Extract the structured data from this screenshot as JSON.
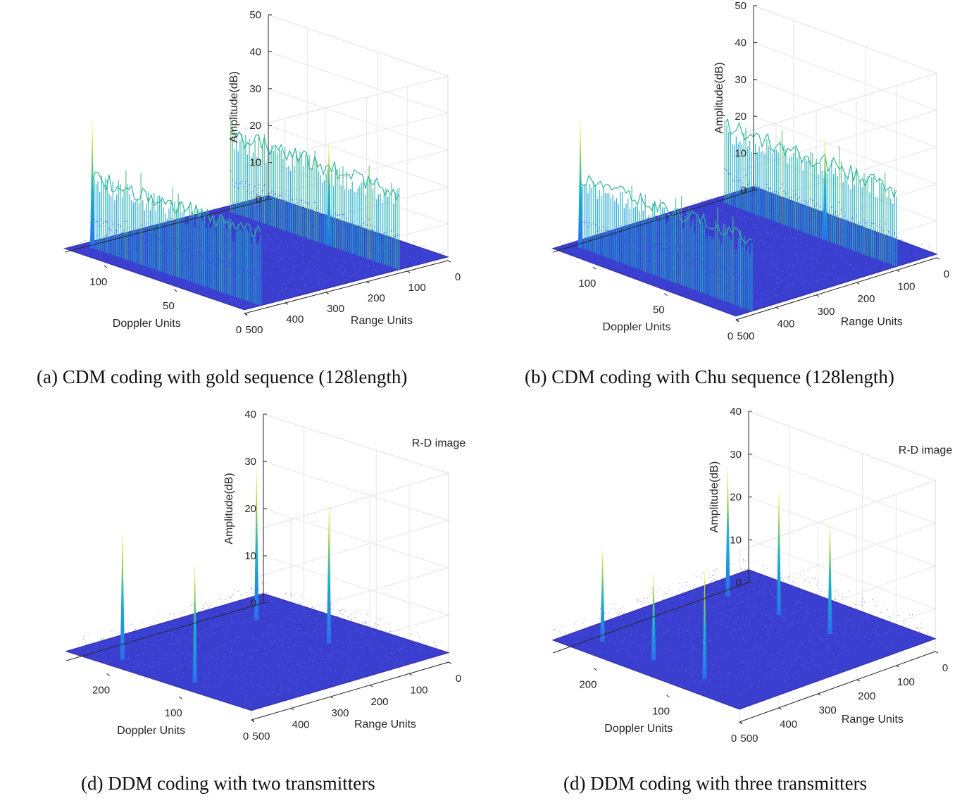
{
  "chart_data": [
    {
      "type": "surface3d",
      "title": "",
      "caption": "(a) CDM coding with gold sequence (128length)",
      "xlabel": "Range Units",
      "ylabel": "Doppler Units",
      "zlabel": "Amplitude(dB)",
      "xlim": [
        0,
        500
      ],
      "ylim": [
        0,
        128
      ],
      "zlim": [
        0,
        50
      ],
      "xticks": [
        0,
        100,
        200,
        300,
        400,
        500
      ],
      "yticks": [
        0,
        50,
        100
      ],
      "zticks": [
        0,
        10,
        20,
        30,
        40,
        50
      ],
      "grid": true,
      "noise_floor_db": 1,
      "ridges": [
        {
          "range": 460,
          "doppler_from": 0,
          "doppler_to": 120,
          "level_db": 22
        },
        {
          "range": 120,
          "doppler_from": 0,
          "doppler_to": 120,
          "level_db": 24
        }
      ],
      "peaks": [
        {
          "range": 460,
          "doppler": 120,
          "amplitude_db": 36
        },
        {
          "range": 120,
          "doppler": 50,
          "amplitude_db": 30
        }
      ]
    },
    {
      "type": "surface3d",
      "title": "",
      "caption": "(b) CDM coding with Chu sequence (128length)",
      "xlabel": "Range Units",
      "ylabel": "Doppler Units",
      "zlabel": "Amplitude(dB)",
      "xlim": [
        0,
        500
      ],
      "ylim": [
        0,
        128
      ],
      "zlim": [
        0,
        50
      ],
      "xticks": [
        0,
        100,
        200,
        300,
        400,
        500
      ],
      "yticks": [
        0,
        50,
        100
      ],
      "zticks": [
        0,
        10,
        20,
        30,
        40,
        50
      ],
      "grid": true,
      "noise_floor_db": 1,
      "ridges": [
        {
          "range": 460,
          "doppler_from": 0,
          "doppler_to": 120,
          "level_db": 22
        },
        {
          "range": 100,
          "doppler_from": 0,
          "doppler_to": 120,
          "level_db": 24
        }
      ],
      "peaks": [
        {
          "range": 460,
          "doppler": 120,
          "amplitude_db": 36
        },
        {
          "range": 100,
          "doppler": 50,
          "amplitude_db": 30
        }
      ]
    },
    {
      "type": "surface3d",
      "title": "R-D image",
      "caption": "(d) DDM coding with two transmitters",
      "xlabel": "Range Units",
      "ylabel": "Doppler Units",
      "zlabel": "Amplitude(dB)",
      "xlim": [
        0,
        500
      ],
      "ylim": [
        0,
        256
      ],
      "zlim": [
        0,
        40
      ],
      "xticks": [
        0,
        100,
        200,
        300,
        400,
        500
      ],
      "yticks": [
        0,
        100,
        200
      ],
      "zticks": [
        0,
        10,
        20,
        30,
        40
      ],
      "grid": true,
      "noise_floor_db": 2,
      "peaks": [
        {
          "range": 460,
          "doppler": 200,
          "amplitude_db": 30
        },
        {
          "range": 460,
          "doppler": 100,
          "amplitude_db": 28
        },
        {
          "range": 120,
          "doppler": 200,
          "amplitude_db": 35
        },
        {
          "range": 120,
          "doppler": 100,
          "amplitude_db": 32
        }
      ]
    },
    {
      "type": "surface3d",
      "title": "R-D image",
      "caption": "(d) DDM coding with three transmitters",
      "xlabel": "Range Units",
      "ylabel": "Doppler Units",
      "zlabel": "Amplitude(dB)",
      "xlim": [
        0,
        500
      ],
      "ylim": [
        0,
        256
      ],
      "zlim": [
        0,
        40
      ],
      "xticks": [
        0,
        100,
        200,
        300,
        400,
        500
      ],
      "yticks": [
        0,
        100,
        200
      ],
      "zticks": [
        0,
        10,
        20,
        30,
        40
      ],
      "grid": true,
      "noise_floor_db": 3,
      "peaks": [
        {
          "range": 440,
          "doppler": 220,
          "amplitude_db": 25
        },
        {
          "range": 440,
          "doppler": 150,
          "amplitude_db": 24
        },
        {
          "range": 440,
          "doppler": 80,
          "amplitude_db": 29
        },
        {
          "range": 120,
          "doppler": 220,
          "amplitude_db": 34
        },
        {
          "range": 120,
          "doppler": 150,
          "amplitude_db": 33
        },
        {
          "range": 120,
          "doppler": 80,
          "amplitude_db": 30
        }
      ]
    }
  ]
}
